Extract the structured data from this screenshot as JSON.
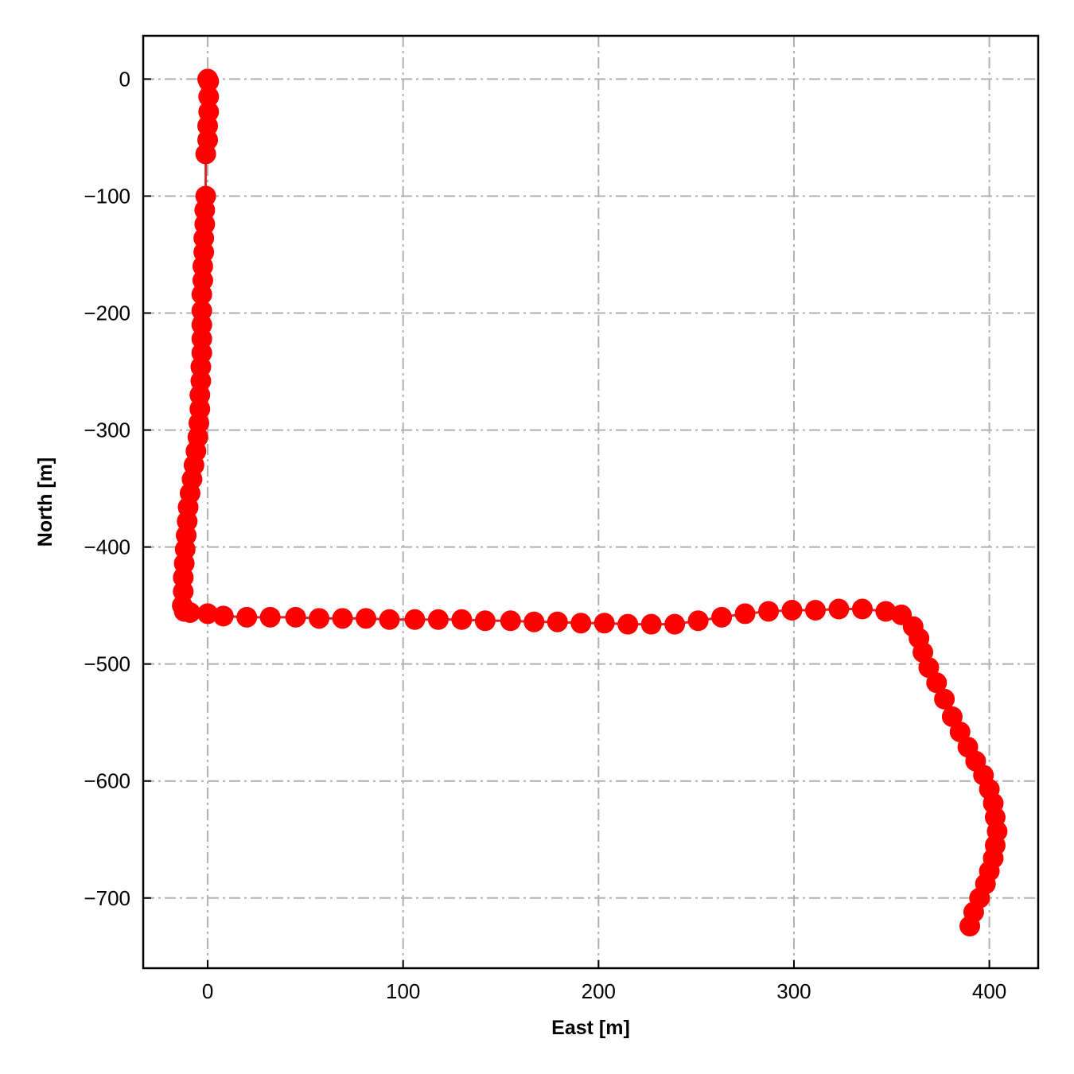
{
  "chart_data": {
    "type": "scatter",
    "title": "",
    "xlabel": "East [m]",
    "ylabel": "North [m]",
    "xlim": [
      -33,
      425
    ],
    "ylim": [
      -760,
      37
    ],
    "x_ticks": [
      0,
      100,
      200,
      300,
      400
    ],
    "y_ticks": [
      0,
      -100,
      -200,
      -300,
      -400,
      -500,
      -600,
      -700
    ],
    "x_tick_labels": [
      "0",
      "100",
      "200",
      "300",
      "400"
    ],
    "y_tick_labels": [
      "0",
      "−100",
      "−200",
      "−300",
      "−400",
      "−500",
      "−600",
      "−700"
    ],
    "grid": true,
    "grid_style": "dash-dot",
    "line_color": "#d62728",
    "marker_color": "#ff0000",
    "series": [
      {
        "x": [
          0,
          0.5,
          0.5,
          0.5,
          0,
          0,
          -1,
          -1,
          -1.5,
          -1.5,
          -2,
          -2,
          -2.5,
          -2.5,
          -3,
          -3,
          -3,
          -3,
          -3,
          -3.5,
          -3.5,
          -4,
          -4,
          -4.5,
          -5,
          -6,
          -7,
          -8,
          -9,
          -10,
          -10.5,
          -11,
          -11.5,
          -12,
          -12.5,
          -12.5,
          -13,
          -12,
          -9,
          0,
          8,
          20,
          32,
          45,
          57,
          69,
          81,
          93,
          106,
          118,
          130,
          142,
          155,
          167,
          179,
          191,
          203,
          215,
          227,
          239,
          251,
          263,
          275,
          287,
          299,
          311,
          323,
          335,
          347,
          355,
          361,
          364,
          366,
          369,
          373,
          377,
          381,
          385,
          389,
          393,
          397,
          400,
          402,
          403,
          404,
          403,
          402,
          400,
          398,
          395,
          392,
          390
        ],
        "y": [
          0,
          -2,
          -15,
          -28,
          -40,
          -52,
          -64,
          -100,
          -112,
          -124,
          -136,
          -148,
          -160,
          -172,
          -184,
          -198,
          -210,
          -222,
          -234,
          -246,
          -258,
          -270,
          -282,
          -294,
          -306,
          -318,
          -330,
          -342,
          -354,
          -366,
          -378,
          -390,
          -402,
          -414,
          -426,
          -438,
          -450,
          -455,
          -456,
          -457,
          -459,
          -460,
          -460,
          -460,
          -461,
          -461,
          -461,
          -462,
          -462,
          -462,
          -462,
          -463,
          -463,
          -464,
          -464,
          -465,
          -465,
          -466,
          -466,
          -466,
          -463,
          -460,
          -457,
          -455,
          -454,
          -454,
          -453,
          -453,
          -455,
          -458,
          -468,
          -478,
          -490,
          -503,
          -516,
          -530,
          -545,
          -558,
          -571,
          -583,
          -595,
          -607,
          -619,
          -631,
          -643,
          -655,
          -666,
          -677,
          -688,
          -700,
          -712,
          -724
        ]
      }
    ]
  }
}
